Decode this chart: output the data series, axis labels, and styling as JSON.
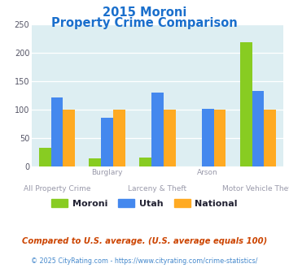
{
  "title_line1": "2015 Moroni",
  "title_line2": "Property Crime Comparison",
  "moroni": [
    33,
    14,
    15,
    0,
    218
  ],
  "utah": [
    121,
    85,
    130,
    101,
    133
  ],
  "national": [
    100,
    100,
    100,
    100,
    100
  ],
  "colors": {
    "moroni": "#88cc22",
    "utah": "#4488ee",
    "national": "#ffaa22"
  },
  "ylim": [
    0,
    250
  ],
  "yticks": [
    0,
    50,
    100,
    150,
    200,
    250
  ],
  "bg_color": "#ddeef2",
  "title_color": "#1a6fcc",
  "top_xlabel_color": "#9999aa",
  "bot_xlabel_color": "#9999aa",
  "footer_color": "#cc4400",
  "copyright_color": "#4488cc",
  "footer_text": "Compared to U.S. average. (U.S. average equals 100)",
  "copyright_text": "© 2025 CityRating.com - https://www.cityrating.com/crime-statistics/",
  "legend_labels": [
    "Moroni",
    "Utah",
    "National"
  ],
  "top_labels": [
    "",
    "Burglary",
    "",
    "Arson",
    ""
  ],
  "bottom_labels": [
    "All Property Crime",
    "",
    "Larceny & Theft",
    "",
    "Motor Vehicle Theft"
  ]
}
